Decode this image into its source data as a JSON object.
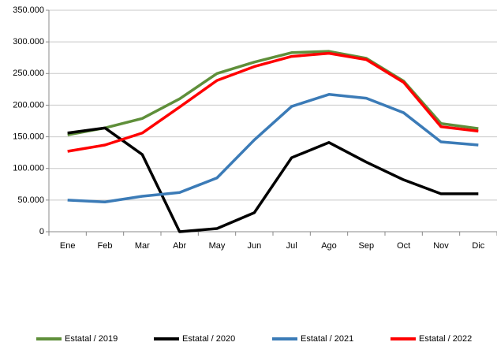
{
  "chart_data": {
    "type": "line",
    "categories": [
      "Ene",
      "Feb",
      "Mar",
      "Abr",
      "May",
      "Jun",
      "Jul",
      "Ago",
      "Sep",
      "Oct",
      "Nov",
      "Dic"
    ],
    "series": [
      {
        "name": "Estatal / 2019",
        "color": "#5f8f3a",
        "values": [
          153000,
          164000,
          179000,
          210000,
          250000,
          268000,
          283000,
          285000,
          274000,
          238000,
          171000,
          163000
        ]
      },
      {
        "name": "Estatal / 2020",
        "color": "#000000",
        "values": [
          156000,
          164000,
          122000,
          0,
          5000,
          30000,
          117000,
          141000,
          110000,
          82000,
          60000,
          60000
        ]
      },
      {
        "name": "Estatal / 2021",
        "color": "#3b7bb7",
        "values": [
          50000,
          47000,
          56000,
          62000,
          85000,
          145000,
          198000,
          217000,
          211000,
          188000,
          142000,
          137000
        ]
      },
      {
        "name": "Estatal / 2022",
        "color": "#ff0000",
        "values": [
          127000,
          137000,
          156000,
          197000,
          239000,
          261000,
          277000,
          282000,
          272000,
          236000,
          166000,
          159000
        ]
      }
    ],
    "ylim": [
      0,
      350000
    ],
    "yticks": [
      0,
      {
        "value": 50000,
        "label": "50.000"
      },
      {
        "value": 100000,
        "label": "100.000"
      },
      {
        "value": 150000,
        "label": "150.000"
      },
      {
        "value": 200000,
        "label": "200.000"
      },
      {
        "value": 250000,
        "label": "250.000"
      },
      {
        "value": 300000,
        "label": "300.000"
      },
      {
        "value": 350000,
        "label": "350.000"
      }
    ],
    "grid": true,
    "legend": "bottom"
  }
}
